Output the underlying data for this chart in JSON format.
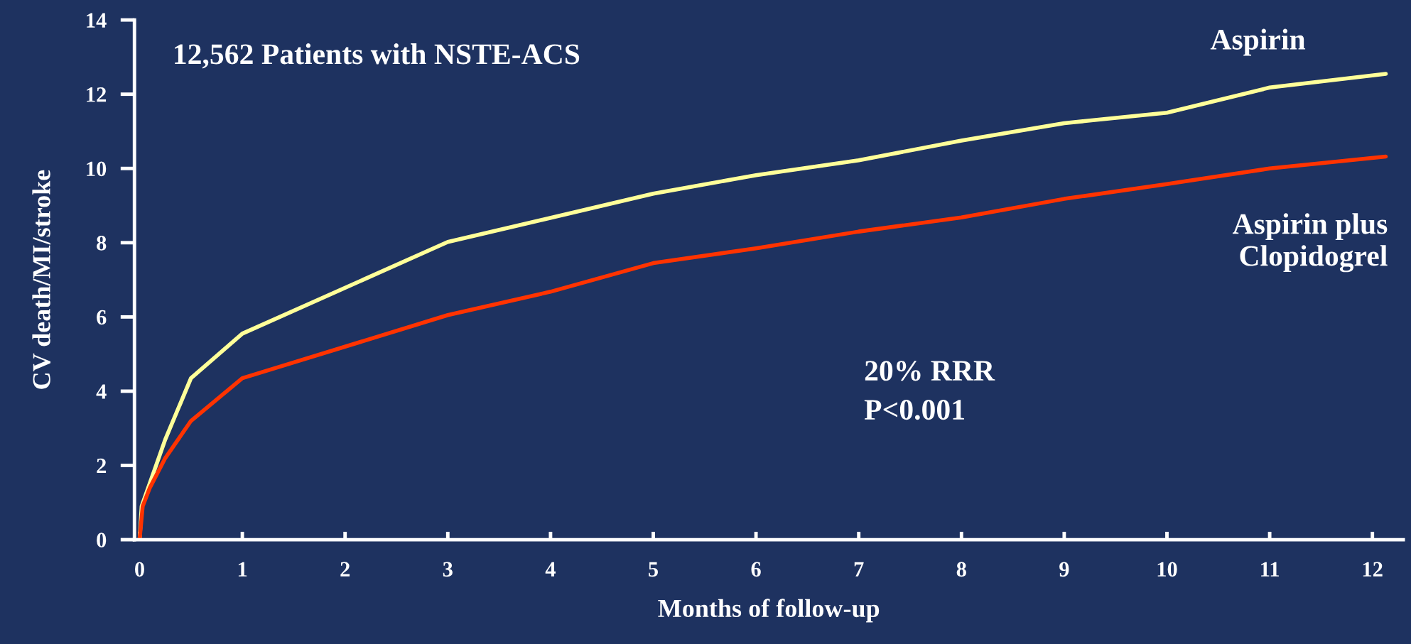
{
  "chart_data": {
    "type": "line",
    "title": "12,562 Patients with NSTE-ACS",
    "xlabel": "Months of follow-up",
    "ylabel": "CV death/MI/stroke",
    "xlim": [
      -0.05,
      12.3
    ],
    "xticks": [
      0,
      1,
      2,
      3,
      4,
      5,
      6,
      7,
      8,
      9,
      10,
      11,
      12
    ],
    "ylim": [
      0,
      14
    ],
    "yticks": [
      0,
      2,
      4,
      6,
      8,
      10,
      12,
      14
    ],
    "grid": false,
    "legend": false,
    "marker": "none",
    "line_style": "solid",
    "annotations": [
      "20% RRR",
      "P<0.001"
    ],
    "series": [
      {
        "name": "Aspirin",
        "color": "#ffff99",
        "x": [
          0,
          0.02,
          0.25,
          0.5,
          1,
          3,
          5,
          6,
          7,
          8,
          9,
          10,
          11,
          12.13
        ],
        "values": [
          0,
          0.9,
          2.7,
          4.35,
          5.55,
          8.02,
          9.32,
          9.82,
          10.22,
          10.75,
          11.22,
          11.5,
          12.18,
          12.55
        ]
      },
      {
        "name": "Aspirin plus\nClopidogrel",
        "color": "#ff3300",
        "x": [
          0,
          0.03,
          0.1,
          0.25,
          0.5,
          1,
          3,
          4,
          5,
          6,
          7,
          8,
          9,
          10,
          11,
          12.13
        ],
        "values": [
          0,
          0.9,
          1.4,
          2.2,
          3.2,
          4.35,
          6.05,
          6.68,
          7.45,
          7.85,
          8.3,
          8.68,
          9.18,
          9.58,
          10.0,
          10.32
        ]
      }
    ]
  }
}
